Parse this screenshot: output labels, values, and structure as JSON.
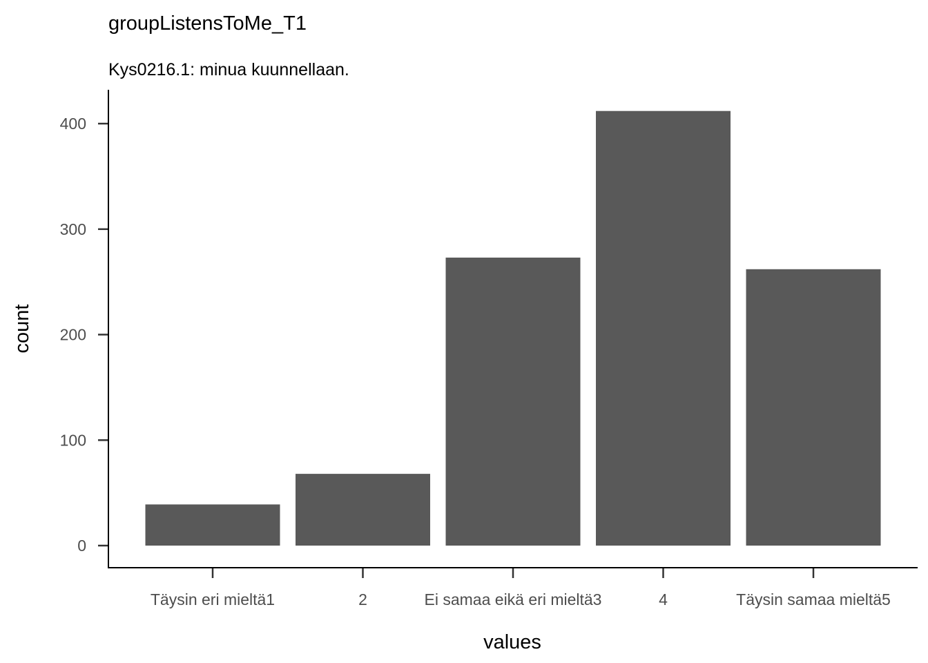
{
  "chart_data": {
    "type": "bar",
    "title": "groupListensToMe_T1",
    "subtitle": "Kys0216.1: minua kuunnellaan.",
    "xlabel": "values",
    "ylabel": "count",
    "categories": [
      "Täysin eri mieltä1",
      "2",
      "Ei samaa eikä eri mieltä3",
      "4",
      "Täysin samaa mieltä5"
    ],
    "values": [
      39,
      68,
      273,
      412,
      262
    ],
    "ylim": [
      0,
      432
    ],
    "yticks": [
      0,
      100,
      200,
      300,
      400
    ],
    "grid": false,
    "bar_color": "#595959",
    "axis_color": "#000000",
    "tick_label_color": "#4d4d4d"
  }
}
